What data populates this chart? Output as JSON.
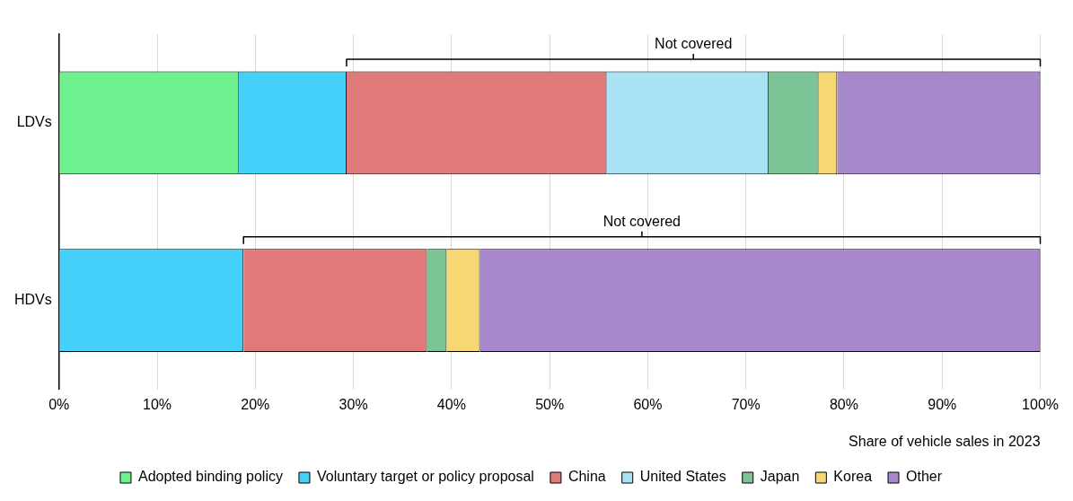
{
  "chart_data": {
    "type": "bar",
    "orientation": "horizontal",
    "stacked": true,
    "categories": [
      "LDVs",
      "HDVs"
    ],
    "series": [
      {
        "name": "Adopted binding policy",
        "color": "#6ef08f",
        "values": [
          18.3,
          null
        ]
      },
      {
        "name": "Voluntary target or policy proposal",
        "color": "#45d0fa",
        "values": [
          11.0,
          18.8
        ]
      },
      {
        "name": "China",
        "color": "#e07a7a",
        "values": [
          26.5,
          18.7
        ]
      },
      {
        "name": "United States",
        "color": "#a8e2f4",
        "values": [
          16.5,
          null
        ]
      },
      {
        "name": "Japan",
        "color": "#7cc496",
        "values": [
          5.1,
          2.0
        ]
      },
      {
        "name": "Korea",
        "color": "#f7d774",
        "values": [
          1.9,
          3.4
        ]
      },
      {
        "name": "Other",
        "color": "#a888cc",
        "values": [
          20.7,
          57.1
        ]
      }
    ],
    "xlim": [
      0,
      100
    ],
    "xticks": [
      {
        "value": 0,
        "label": "0%"
      },
      {
        "value": 10,
        "label": "10%"
      },
      {
        "value": 20,
        "label": "20%"
      },
      {
        "value": 30,
        "label": "30%"
      },
      {
        "value": 40,
        "label": "40%"
      },
      {
        "value": 50,
        "label": "50%"
      },
      {
        "value": 60,
        "label": "60%"
      },
      {
        "value": 70,
        "label": "70%"
      },
      {
        "value": 80,
        "label": "80%"
      },
      {
        "value": 90,
        "label": "90%"
      },
      {
        "value": 100,
        "label": "100%"
      }
    ],
    "xlabel": "Share of vehicle sales in 2023",
    "annotations": [
      "Not covered",
      "Not covered"
    ],
    "grid": "x",
    "legend": "bottom"
  }
}
